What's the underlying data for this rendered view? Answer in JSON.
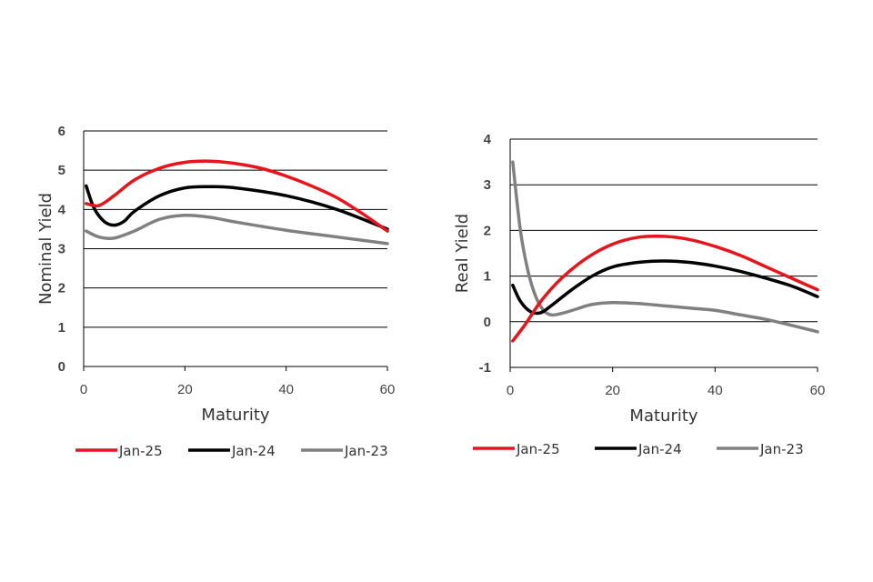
{
  "chart_data": [
    {
      "type": "line",
      "title": "",
      "xlabel": "Maturity",
      "ylabel": "Nominal Yield",
      "xlim": [
        0,
        60
      ],
      "ylim": [
        0,
        6
      ],
      "xticks": [
        0,
        20,
        40,
        60
      ],
      "yticks": [
        0,
        1,
        2,
        3,
        4,
        5,
        6
      ],
      "grid": "horizontal",
      "legend_position": "bottom",
      "series": [
        {
          "name": "Jan-25",
          "color": "#e8141b",
          "x": [
            0.5,
            3,
            6,
            10,
            15,
            20,
            25,
            30,
            35,
            40,
            45,
            50,
            55,
            60
          ],
          "y": [
            4.15,
            4.1,
            4.35,
            4.75,
            5.05,
            5.2,
            5.23,
            5.17,
            5.05,
            4.85,
            4.6,
            4.3,
            3.9,
            3.45
          ]
        },
        {
          "name": "Jan-24",
          "color": "#000000",
          "x": [
            0.5,
            2,
            4,
            6,
            8,
            10,
            15,
            20,
            25,
            30,
            40,
            50,
            60
          ],
          "y": [
            4.6,
            4.05,
            3.7,
            3.6,
            3.7,
            3.95,
            4.35,
            4.55,
            4.58,
            4.55,
            4.35,
            4.0,
            3.5
          ]
        },
        {
          "name": "Jan-23",
          "color": "#808080",
          "x": [
            0.5,
            3,
            6,
            10,
            15,
            20,
            25,
            30,
            40,
            50,
            60
          ],
          "y": [
            3.45,
            3.3,
            3.27,
            3.45,
            3.75,
            3.85,
            3.8,
            3.68,
            3.47,
            3.3,
            3.13
          ]
        }
      ]
    },
    {
      "type": "line",
      "title": "",
      "xlabel": "Maturity",
      "ylabel": "Real Yield",
      "xlim": [
        0,
        60
      ],
      "ylim": [
        -1,
        4
      ],
      "xticks": [
        0,
        20,
        40,
        60
      ],
      "yticks": [
        -1,
        0,
        1,
        2,
        3,
        4
      ],
      "grid": "horizontal",
      "legend_position": "bottom",
      "series": [
        {
          "name": "Jan-25",
          "color": "#e8141b",
          "x": [
            0.5,
            3,
            6,
            10,
            15,
            20,
            25,
            30,
            35,
            40,
            45,
            50,
            55,
            60
          ],
          "y": [
            -0.42,
            -0.05,
            0.45,
            0.95,
            1.4,
            1.7,
            1.85,
            1.87,
            1.8,
            1.65,
            1.45,
            1.2,
            0.95,
            0.7
          ]
        },
        {
          "name": "Jan-24",
          "color": "#000000",
          "x": [
            0.5,
            2,
            4,
            6,
            8,
            12,
            16,
            20,
            25,
            30,
            35,
            40,
            45,
            50,
            55,
            60
          ],
          "y": [
            0.8,
            0.45,
            0.22,
            0.2,
            0.35,
            0.7,
            1.0,
            1.2,
            1.3,
            1.33,
            1.3,
            1.22,
            1.1,
            0.95,
            0.78,
            0.55
          ]
        },
        {
          "name": "Jan-23",
          "color": "#808080",
          "x": [
            0.5,
            2,
            3.5,
            5,
            6.5,
            8,
            10,
            13,
            16,
            20,
            25,
            30,
            35,
            40,
            45,
            50,
            55,
            60
          ],
          "y": [
            3.5,
            2.0,
            1.1,
            0.55,
            0.25,
            0.15,
            0.18,
            0.28,
            0.38,
            0.42,
            0.4,
            0.35,
            0.3,
            0.25,
            0.15,
            0.05,
            -0.08,
            -0.22
          ]
        }
      ]
    }
  ]
}
